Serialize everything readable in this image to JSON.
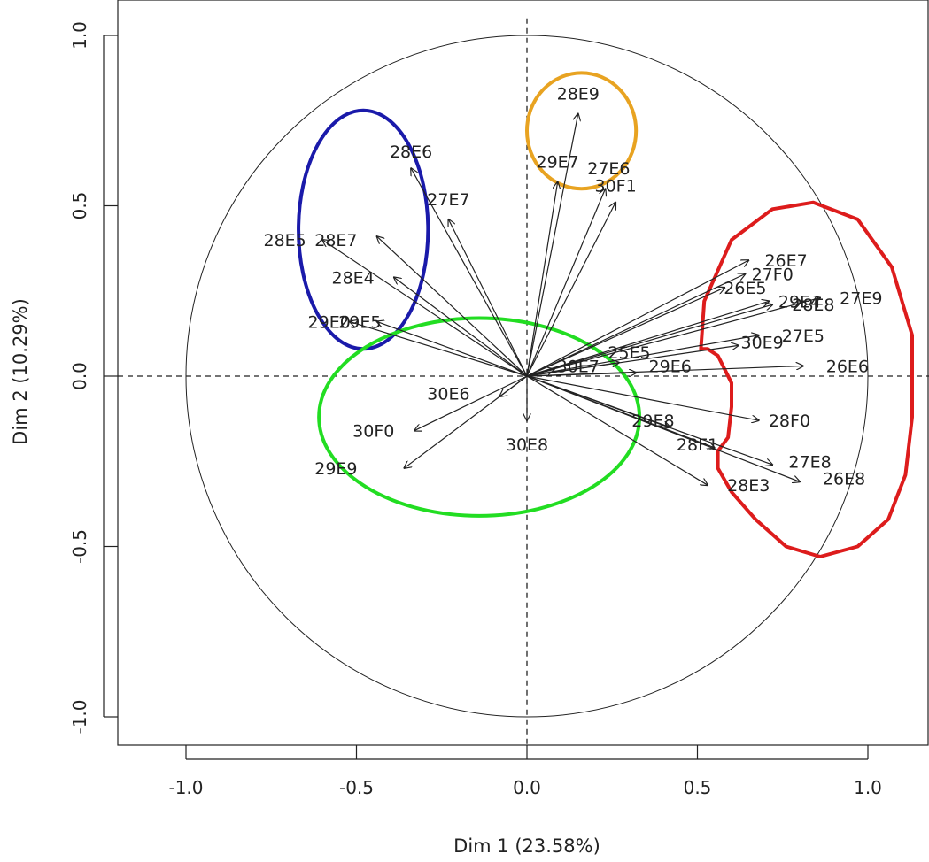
{
  "chart_data": {
    "type": "scatter",
    "subtype": "pca-variable-correlation-circle",
    "title": "",
    "xlabel": "Dim 1 (23.58%)",
    "ylabel": "Dim 2 (10.29%)",
    "xlim": [
      -1.2,
      1.18
    ],
    "ylim": [
      -1.08,
      1.05
    ],
    "x_ticks": [
      -1.0,
      -0.5,
      0.0,
      0.5,
      1.0
    ],
    "x_tick_labels": [
      "-1.0",
      "-0.5",
      "0.0",
      "0.5",
      "1.0"
    ],
    "y_ticks": [
      -1.0,
      -0.5,
      0.0,
      0.5,
      1.0
    ],
    "y_tick_labels": [
      "-1.0",
      "-0.5",
      "0.0",
      "0.5",
      "1.0"
    ],
    "grid": false,
    "reference_lines": "dashed lines at x=0 and y=0",
    "unit_circle": true,
    "variables": [
      {
        "name": "28E9",
        "x": 0.15,
        "y": 0.77
      },
      {
        "name": "29E7",
        "x": 0.09,
        "y": 0.57
      },
      {
        "name": "27E6",
        "x": 0.23,
        "y": 0.55
      },
      {
        "name": "30F1",
        "x": 0.26,
        "y": 0.51
      },
      {
        "name": "28E6",
        "x": -0.34,
        "y": 0.61
      },
      {
        "name": "27E7",
        "x": -0.23,
        "y": 0.46
      },
      {
        "name": "28E5",
        "x": -0.6,
        "y": 0.4
      },
      {
        "name": "28E7",
        "x": -0.44,
        "y": 0.41
      },
      {
        "name": "28E4",
        "x": -0.39,
        "y": 0.29
      },
      {
        "name": "29E0",
        "x": -0.52,
        "y": 0.16
      },
      {
        "name": "29E5",
        "x": -0.44,
        "y": 0.16
      },
      {
        "name": "26E7",
        "x": 0.65,
        "y": 0.34
      },
      {
        "name": "27F0",
        "x": 0.64,
        "y": 0.3
      },
      {
        "name": "26E5",
        "x": 0.58,
        "y": 0.26
      },
      {
        "name": "29E4",
        "x": 0.71,
        "y": 0.22
      },
      {
        "name": "28E8",
        "x": 0.72,
        "y": 0.21
      },
      {
        "name": "27E9",
        "x": 0.86,
        "y": 0.23
      },
      {
        "name": "27E5",
        "x": 0.68,
        "y": 0.12
      },
      {
        "name": "30E9",
        "x": 0.62,
        "y": 0.09
      },
      {
        "name": "26E6",
        "x": 0.81,
        "y": 0.03
      },
      {
        "name": "25E5",
        "x": 0.27,
        "y": 0.04
      },
      {
        "name": "30E7",
        "x": 0.08,
        "y": 0.02
      },
      {
        "name": "29E6",
        "x": 0.32,
        "y": 0.01
      },
      {
        "name": "28F0",
        "x": 0.68,
        "y": -0.13
      },
      {
        "name": "29E8",
        "x": 0.42,
        "y": -0.15
      },
      {
        "name": "28F1",
        "x": 0.55,
        "y": -0.21
      },
      {
        "name": "27E8",
        "x": 0.72,
        "y": -0.26
      },
      {
        "name": "26E8",
        "x": 0.8,
        "y": -0.31
      },
      {
        "name": "28E3",
        "x": 0.53,
        "y": -0.32
      },
      {
        "name": "30E6",
        "x": -0.08,
        "y": -0.06
      },
      {
        "name": "30F0",
        "x": -0.33,
        "y": -0.16
      },
      {
        "name": "29E9",
        "x": -0.36,
        "y": -0.27
      },
      {
        "name": "30E8",
        "x": 0.0,
        "y": -0.13
      }
    ],
    "label_positions": {
      "28E9": [
        0.15,
        0.83
      ],
      "29E7": [
        0.09,
        0.63
      ],
      "27E6": [
        0.24,
        0.61
      ],
      "30F1": [
        0.26,
        0.56
      ],
      "28E6": [
        -0.34,
        0.66
      ],
      "27E7": [
        -0.23,
        0.52
      ],
      "28E5": [
        -0.71,
        0.4
      ],
      "28E7": [
        -0.56,
        0.4
      ],
      "28E4": [
        -0.51,
        0.29
      ],
      "29E0": [
        -0.58,
        0.16
      ],
      "29E5": [
        -0.49,
        0.16
      ],
      "26E7": [
        0.76,
        0.34
      ],
      "27F0": [
        0.72,
        0.3
      ],
      "26E5": [
        0.64,
        0.26
      ],
      "29E4": [
        0.8,
        0.22
      ],
      "28E8": [
        0.84,
        0.21
      ],
      "27E9": [
        0.98,
        0.23
      ],
      "27E5": [
        0.81,
        0.12
      ],
      "30E9": [
        0.69,
        0.1
      ],
      "26E6": [
        0.94,
        0.03
      ],
      "25E5": [
        0.3,
        0.07
      ],
      "30E7": [
        0.15,
        0.03
      ],
      "29E6": [
        0.42,
        0.03
      ],
      "28F0": [
        0.77,
        -0.13
      ],
      "29E8": [
        0.37,
        -0.13
      ],
      "28F1": [
        0.5,
        -0.2
      ],
      "27E8": [
        0.83,
        -0.25
      ],
      "26E8": [
        0.93,
        -0.3
      ],
      "28E3": [
        0.65,
        -0.32
      ],
      "30E6": [
        -0.23,
        -0.05
      ],
      "30F0": [
        -0.45,
        -0.16
      ],
      "29E9": [
        -0.56,
        -0.27
      ],
      "30E8": [
        0.0,
        -0.2
      ]
    },
    "groups": [
      {
        "color": "#e8a321",
        "shape": "circle",
        "center": [
          0.16,
          0.72
        ],
        "radius": [
          0.16,
          0.17
        ]
      },
      {
        "color": "#1a1aaa",
        "shape": "circle",
        "center": [
          -0.48,
          0.43
        ],
        "radius": [
          0.19,
          0.35
        ]
      },
      {
        "color": "#22dd22",
        "shape": "ellipse",
        "center": [
          -0.14,
          -0.12
        ],
        "radius": [
          0.47,
          0.29
        ]
      },
      {
        "color": "#dd1c1c",
        "shape": "closed-curve",
        "outline": [
          [
            0.51,
            0.08
          ],
          [
            0.52,
            0.22
          ],
          [
            0.6,
            0.4
          ],
          [
            0.72,
            0.49
          ],
          [
            0.84,
            0.51
          ],
          [
            0.97,
            0.46
          ],
          [
            1.07,
            0.32
          ],
          [
            1.13,
            0.12
          ],
          [
            1.13,
            -0.12
          ],
          [
            1.11,
            -0.29
          ],
          [
            1.06,
            -0.42
          ],
          [
            0.97,
            -0.5
          ],
          [
            0.86,
            -0.53
          ],
          [
            0.76,
            -0.5
          ],
          [
            0.67,
            -0.42
          ],
          [
            0.6,
            -0.34
          ],
          [
            0.56,
            -0.27
          ],
          [
            0.56,
            -0.22
          ],
          [
            0.59,
            -0.18
          ],
          [
            0.6,
            -0.09
          ],
          [
            0.6,
            -0.02
          ],
          [
            0.58,
            0.02
          ],
          [
            0.56,
            0.06
          ],
          [
            0.53,
            0.08
          ],
          [
            0.51,
            0.08
          ]
        ]
      }
    ]
  }
}
